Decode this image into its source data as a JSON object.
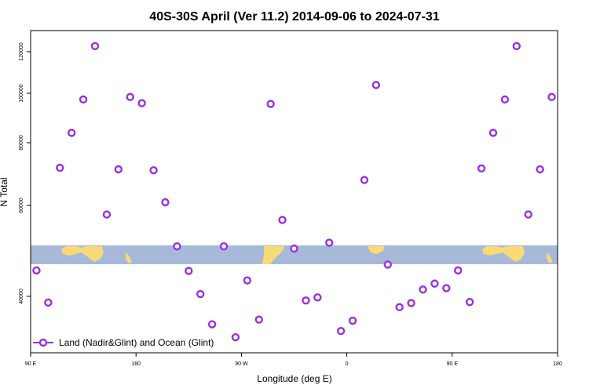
{
  "chart_data": {
    "type": "scatter",
    "title": "40S-30S April (Ver 11.2)   2014-09-06 to 2024-07-31",
    "xlabel": "Longitude (deg E)",
    "ylabel": "N Total",
    "x_ticks": [
      {
        "value": 90,
        "label": "90 E"
      },
      {
        "value": 180,
        "label": "180"
      },
      {
        "value": 270,
        "label": "90 W"
      },
      {
        "value": 360,
        "label": "0"
      },
      {
        "value": 450,
        "label": "90 E"
      },
      {
        "value": 540,
        "label": "180"
      }
    ],
    "y_ticks": [
      {
        "value": 40000,
        "label": "40000"
      },
      {
        "value": 60000,
        "label": "60000"
      },
      {
        "value": 80000,
        "label": "80000"
      },
      {
        "value": 100000,
        "label": "100000"
      },
      {
        "value": 120000,
        "label": "120000"
      }
    ],
    "xlim": [
      90,
      540
    ],
    "series": [
      {
        "name": "Land (Nadir&Glint) and Ocean (Glint)",
        "color": "#9a2fe0",
        "x": [
          95,
          105,
          115,
          125,
          135,
          145,
          155,
          165,
          175,
          185,
          195,
          205,
          215,
          225,
          235,
          245,
          255,
          265,
          275,
          285,
          295,
          305,
          315,
          325,
          335,
          345,
          355,
          365,
          375,
          385,
          395,
          405,
          415,
          425,
          435,
          445,
          455,
          465,
          475,
          485,
          495,
          505,
          515,
          525,
          535
        ],
        "y": [
          45700,
          38800,
          72000,
          84000,
          97500,
          123000,
          58000,
          71500,
          98500,
          96000,
          71200,
          61000,
          51000,
          45600,
          40500,
          34600,
          51000,
          32100,
          43500,
          35500,
          95700,
          56800,
          50500,
          39200,
          39800,
          51800,
          33300,
          35300,
          68100,
          104000,
          47000,
          37900,
          38700,
          41500,
          42800,
          41800,
          45700,
          38900,
          71800,
          84000,
          97500,
          123000,
          58000,
          71500,
          98500
        ]
      }
    ],
    "background_band": "world-map-strip",
    "legend_position": "bottom-left"
  }
}
